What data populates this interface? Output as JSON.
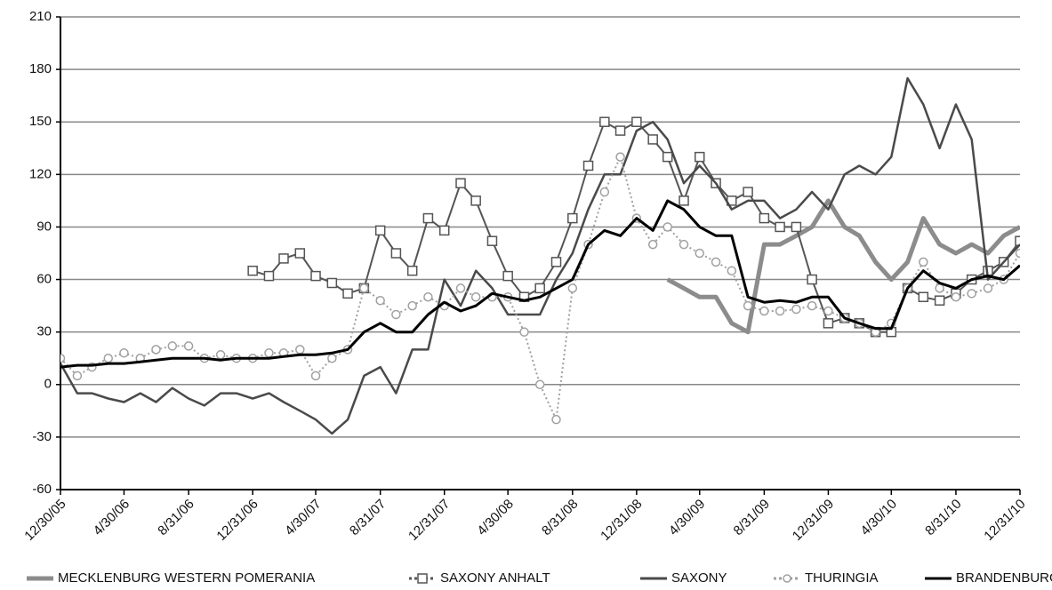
{
  "chart_data": {
    "type": "line",
    "x": [
      "12/30/05",
      "1/31/06",
      "2/28/06",
      "3/31/06",
      "4/30/06",
      "5/31/06",
      "6/30/06",
      "7/31/06",
      "8/31/06",
      "9/30/06",
      "10/31/06",
      "11/30/06",
      "12/31/06",
      "1/31/07",
      "2/28/07",
      "3/31/07",
      "4/30/07",
      "5/31/07",
      "6/30/07",
      "7/31/07",
      "8/31/07",
      "9/30/07",
      "10/31/07",
      "11/30/07",
      "12/31/07",
      "1/31/08",
      "2/29/08",
      "3/31/08",
      "4/30/08",
      "5/31/08",
      "6/30/08",
      "7/31/08",
      "8/31/08",
      "9/30/08",
      "10/31/08",
      "11/30/08",
      "12/31/08",
      "1/31/09",
      "2/28/09",
      "3/31/09",
      "4/30/09",
      "5/31/09",
      "6/30/09",
      "7/31/09",
      "8/31/09",
      "9/30/09",
      "10/31/09",
      "11/30/09",
      "12/31/09",
      "1/31/10",
      "2/28/10",
      "3/31/10",
      "4/30/10",
      "5/31/10",
      "6/30/10",
      "7/31/10",
      "8/31/10",
      "9/30/10",
      "10/31/10",
      "11/30/10",
      "12/31/10"
    ],
    "series": [
      {
        "name": "MECKLENBURG WESTERN POMERANIA",
        "color": "#8c8c8c",
        "style": "thick",
        "values": [
          null,
          null,
          null,
          null,
          null,
          null,
          null,
          null,
          null,
          null,
          null,
          null,
          null,
          null,
          null,
          null,
          null,
          null,
          null,
          null,
          null,
          null,
          null,
          null,
          null,
          null,
          null,
          null,
          null,
          null,
          null,
          null,
          null,
          null,
          null,
          null,
          null,
          null,
          60,
          55,
          50,
          50,
          35,
          30,
          80,
          80,
          85,
          90,
          105,
          90,
          85,
          70,
          60,
          70,
          95,
          80,
          75,
          80,
          75,
          85,
          90
        ]
      },
      {
        "name": "SAXONY ANHALT",
        "color": "#555555",
        "style": "square",
        "values": [
          null,
          null,
          null,
          null,
          null,
          null,
          null,
          null,
          null,
          null,
          null,
          null,
          65,
          62,
          72,
          75,
          62,
          58,
          52,
          55,
          88,
          75,
          65,
          95,
          88,
          115,
          105,
          82,
          62,
          50,
          55,
          70,
          95,
          125,
          150,
          145,
          150,
          140,
          130,
          105,
          130,
          115,
          105,
          110,
          95,
          90,
          90,
          60,
          35,
          38,
          35,
          30,
          30,
          55,
          50,
          48,
          52,
          60,
          65,
          70,
          82
        ]
      },
      {
        "name": "SAXONY",
        "color": "#4a4a4a",
        "style": "solid",
        "values": [
          12,
          -5,
          -5,
          -8,
          -10,
          -5,
          -10,
          -2,
          -8,
          -12,
          -5,
          -5,
          -8,
          -5,
          -10,
          -15,
          -20,
          -28,
          -20,
          5,
          10,
          -5,
          20,
          20,
          60,
          45,
          65,
          55,
          40,
          40,
          40,
          60,
          75,
          100,
          120,
          120,
          145,
          150,
          140,
          115,
          125,
          115,
          100,
          105,
          105,
          95,
          100,
          110,
          100,
          120,
          125,
          120,
          130,
          175,
          160,
          135,
          160,
          140,
          60,
          70,
          80
        ]
      },
      {
        "name": "THURINGIA",
        "color": "#a0a0a0",
        "style": "circle",
        "values": [
          15,
          5,
          10,
          15,
          18,
          15,
          20,
          22,
          22,
          15,
          17,
          15,
          15,
          18,
          18,
          20,
          5,
          15,
          20,
          55,
          48,
          40,
          45,
          50,
          45,
          55,
          50,
          50,
          50,
          30,
          0,
          -20,
          55,
          80,
          110,
          130,
          95,
          80,
          90,
          80,
          75,
          70,
          65,
          45,
          42,
          42,
          43,
          45,
          42,
          38,
          35,
          30,
          35,
          55,
          70,
          55,
          50,
          52,
          55,
          60,
          75
        ]
      },
      {
        "name": "BRANDENBURG",
        "color": "#000000",
        "style": "solid",
        "values": [
          10,
          11,
          11,
          12,
          12,
          13,
          14,
          15,
          15,
          15,
          14,
          15,
          15,
          15,
          16,
          17,
          17,
          18,
          20,
          30,
          35,
          30,
          30,
          40,
          47,
          42,
          45,
          52,
          50,
          48,
          50,
          55,
          60,
          80,
          88,
          85,
          95,
          88,
          105,
          100,
          90,
          85,
          85,
          50,
          47,
          48,
          47,
          50,
          50,
          38,
          35,
          32,
          32,
          55,
          65,
          58,
          55,
          60,
          62,
          60,
          68
        ]
      }
    ],
    "xlim": [
      "12/30/05",
      "12/31/10"
    ],
    "xticks": [
      "12/30/05",
      "4/30/06",
      "8/31/06",
      "12/31/06",
      "4/30/07",
      "8/31/07",
      "12/31/07",
      "4/30/08",
      "8/31/08",
      "12/31/08",
      "4/30/09",
      "8/31/09",
      "12/31/09",
      "4/30/10",
      "8/31/10",
      "12/31/10"
    ],
    "ylim": [
      -60,
      210
    ],
    "yticks": [
      -60,
      -30,
      0,
      30,
      60,
      90,
      120,
      150,
      180,
      210
    ],
    "grid": true
  }
}
